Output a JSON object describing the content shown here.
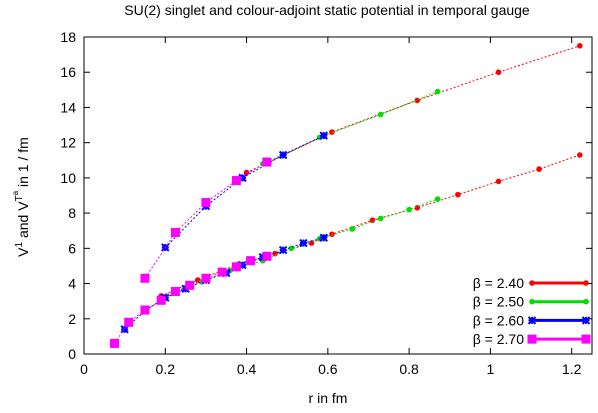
{
  "chart_data": {
    "type": "scatter",
    "title": "SU(2) singlet and colour-adjoint static potential in temporal gauge",
    "xlabel": "r in fm",
    "ylabel_parts": {
      "v": "V",
      "sup1": "1",
      "mid": " and V",
      "supT": "T",
      "supA": "a",
      "rest": " in 1 / fm"
    },
    "xlim": [
      0,
      1.25
    ],
    "ylim": [
      0,
      18
    ],
    "xticks": [
      0,
      0.2,
      0.4,
      0.6,
      0.8,
      1,
      1.2
    ],
    "xtick_labels": [
      "0",
      "0.2",
      "0.4",
      "0.6",
      "0.8",
      "1",
      "1.2"
    ],
    "yticks": [
      0,
      2,
      4,
      6,
      8,
      10,
      12,
      14,
      16,
      18
    ],
    "ytick_labels": [
      "0",
      "2",
      "4",
      "6",
      "8",
      "10",
      "12",
      "14",
      "16",
      "18"
    ],
    "legend_position": "bottom-right",
    "series": [
      {
        "name": "β = 2.40",
        "color": "#ff0000",
        "marker": "circle",
        "singlet": [
          [
            0.19,
            3.3
          ],
          [
            0.28,
            4.2
          ],
          [
            0.38,
            5.1
          ],
          [
            0.47,
            5.7
          ],
          [
            0.56,
            6.3
          ],
          [
            0.61,
            6.8
          ],
          [
            0.71,
            7.6
          ],
          [
            0.82,
            8.3
          ],
          [
            0.92,
            9.05
          ],
          [
            1.02,
            9.8
          ],
          [
            1.12,
            10.5
          ],
          [
            1.22,
            11.3
          ]
        ],
        "adjoint": [
          [
            0.4,
            10.3
          ],
          [
            0.61,
            12.6
          ],
          [
            0.82,
            14.4
          ],
          [
            1.02,
            16.0
          ],
          [
            1.22,
            17.5
          ]
        ]
      },
      {
        "name": "β = 2.50",
        "color": "#00dd00",
        "marker": "circle",
        "singlet": [
          [
            0.22,
            3.5
          ],
          [
            0.29,
            4.1
          ],
          [
            0.36,
            4.75
          ],
          [
            0.44,
            5.3
          ],
          [
            0.51,
            6.0
          ],
          [
            0.58,
            6.55
          ],
          [
            0.66,
            7.1
          ],
          [
            0.73,
            7.7
          ],
          [
            0.8,
            8.2
          ],
          [
            0.87,
            8.8
          ]
        ],
        "adjoint": [
          [
            0.44,
            10.8
          ],
          [
            0.58,
            12.3
          ],
          [
            0.73,
            13.6
          ],
          [
            0.87,
            14.9
          ]
        ]
      },
      {
        "name": "β = 2.60",
        "color": "#0000ff",
        "marker": "star",
        "singlet": [
          [
            0.1,
            1.4
          ],
          [
            0.15,
            2.45
          ],
          [
            0.2,
            3.2
          ],
          [
            0.25,
            3.7
          ],
          [
            0.3,
            4.2
          ],
          [
            0.35,
            4.6
          ],
          [
            0.39,
            5.05
          ],
          [
            0.44,
            5.5
          ],
          [
            0.49,
            5.9
          ],
          [
            0.54,
            6.3
          ],
          [
            0.59,
            6.6
          ]
        ],
        "adjoint": [
          [
            0.2,
            6.05
          ],
          [
            0.3,
            8.4
          ],
          [
            0.39,
            10.0
          ],
          [
            0.49,
            11.3
          ],
          [
            0.59,
            12.4
          ]
        ]
      },
      {
        "name": "β = 2.70",
        "color": "#ff00ff",
        "marker": "square",
        "singlet": [
          [
            0.075,
            0.6
          ],
          [
            0.11,
            1.8
          ],
          [
            0.15,
            2.5
          ],
          [
            0.19,
            3.05
          ],
          [
            0.225,
            3.55
          ],
          [
            0.26,
            3.9
          ],
          [
            0.3,
            4.3
          ],
          [
            0.34,
            4.65
          ],
          [
            0.375,
            4.95
          ],
          [
            0.41,
            5.3
          ],
          [
            0.45,
            5.55
          ]
        ],
        "adjoint": [
          [
            0.15,
            4.3
          ],
          [
            0.225,
            6.9
          ],
          [
            0.3,
            8.6
          ],
          [
            0.375,
            9.85
          ],
          [
            0.45,
            10.9
          ]
        ]
      }
    ]
  }
}
